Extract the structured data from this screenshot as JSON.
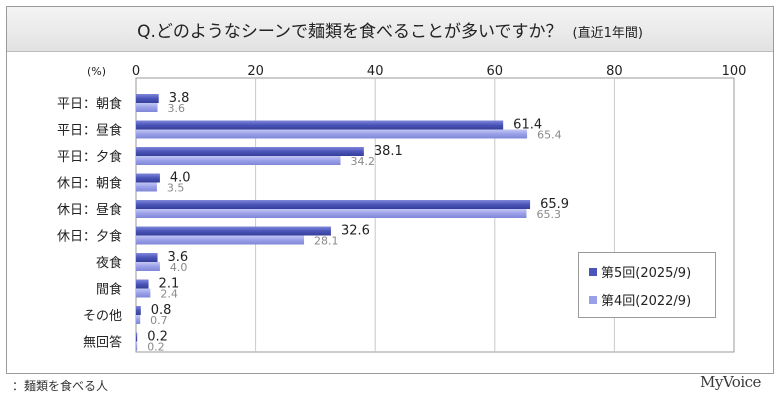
{
  "title": {
    "main": "Q.どのようなシーンで麺類を食べることが多いですか？",
    "sub": "(直近1年間)"
  },
  "footnote": "：麺類を食べる人",
  "brand": "MyVoice",
  "colors": {
    "series1": "#4b55b8",
    "series2": "#9aa0e8",
    "label1": "#222222",
    "label2": "#8a8a8a",
    "grid": "#c8c8c8"
  },
  "chart_data": {
    "type": "bar",
    "orientation": "horizontal",
    "unit_label": "(%)",
    "xlim": [
      0,
      100
    ],
    "ticks": [
      "0",
      "20",
      "40",
      "60",
      "80",
      "100"
    ],
    "tick_values": [
      0,
      20,
      40,
      60,
      80,
      100
    ],
    "grid": true,
    "legend_position": "bottom-right",
    "categories": [
      "平日：朝食",
      "平日：昼食",
      "平日：夕食",
      "休日：朝食",
      "休日：昼食",
      "休日：夕食",
      "夜食",
      "間食",
      "その他",
      "無回答"
    ],
    "series": [
      {
        "name": "第5回(2025/9)",
        "values": [
          3.8,
          61.4,
          38.1,
          4.0,
          65.9,
          32.6,
          3.6,
          2.1,
          0.8,
          0.2
        ],
        "labels": [
          "3.8",
          "61.4",
          "38.1",
          "4.0",
          "65.9",
          "32.6",
          "3.6",
          "2.1",
          "0.8",
          "0.2"
        ]
      },
      {
        "name": "第4回(2022/9)",
        "values": [
          3.6,
          65.4,
          34.2,
          3.5,
          65.3,
          28.1,
          4.0,
          2.4,
          0.7,
          0.2
        ],
        "labels": [
          "3.6",
          "65.4",
          "34.2",
          "3.5",
          "65.3",
          "28.1",
          "4.0",
          "2.4",
          "0.7",
          "0.2"
        ]
      }
    ]
  }
}
